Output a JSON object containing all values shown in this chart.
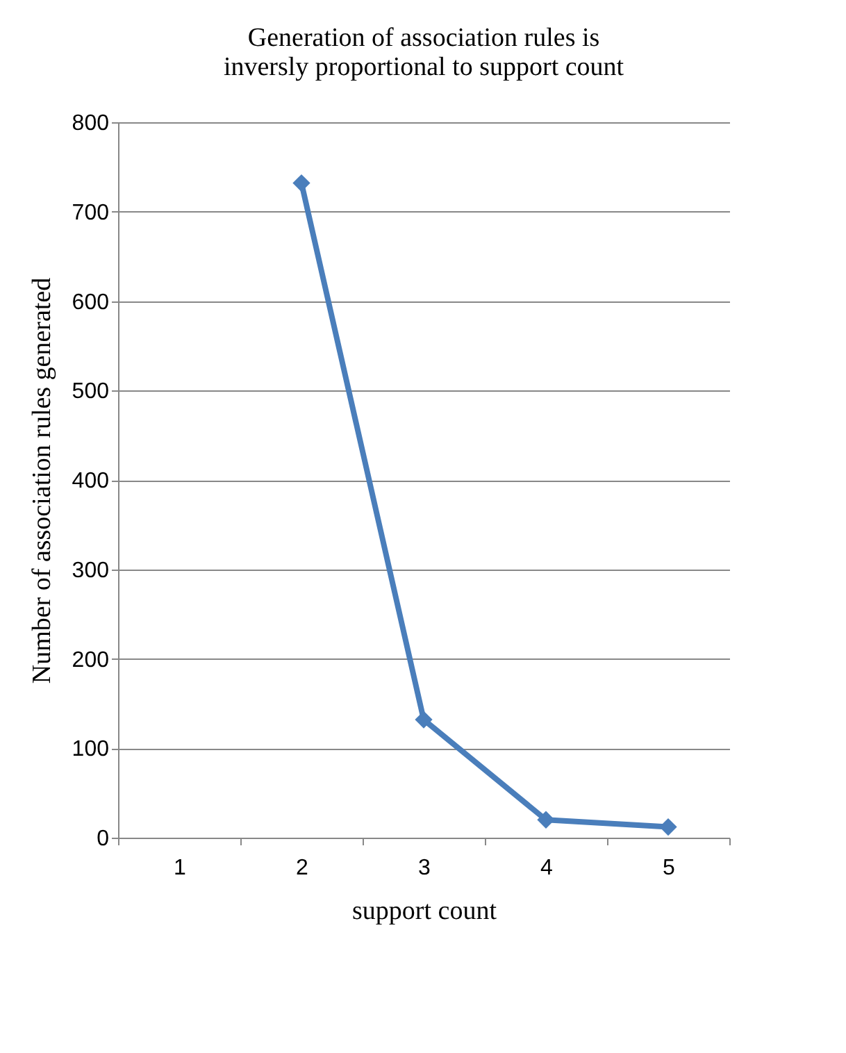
{
  "chart_data": {
    "type": "line",
    "title": "Generation of association rules is inversly proportional to support count",
    "xlabel": "support count",
    "ylabel": "Number of association rules generated",
    "categories": [
      "1",
      "2",
      "3",
      "4",
      "5"
    ],
    "series": [
      {
        "color": "#4a7ebb",
        "values": [
          null,
          732,
          132,
          20,
          12
        ]
      }
    ],
    "ylim": [
      0,
      800
    ],
    "yticks": [
      0,
      100,
      200,
      300,
      400,
      500,
      600,
      700,
      800
    ],
    "grid": "y",
    "marker": "diamond",
    "line_style": "solid"
  }
}
